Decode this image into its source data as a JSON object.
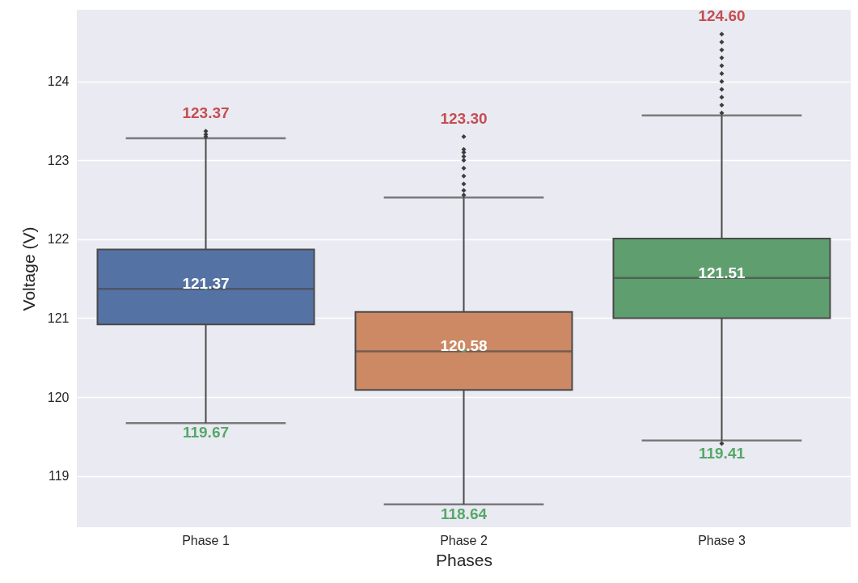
{
  "chart_data": {
    "type": "box",
    "xlabel": "Phases",
    "ylabel": "Voltage (V)",
    "categories": [
      "Phase 1",
      "Phase 2",
      "Phase 3"
    ],
    "colors": [
      "#5572a4",
      "#cc8963",
      "#5f9e6e"
    ],
    "boxes": [
      {
        "low": 119.67,
        "q1": 120.92,
        "median": 121.37,
        "q3": 121.87,
        "high": 123.28,
        "mean": 121.38,
        "outliers": [
          123.3,
          123.33,
          123.37
        ]
      },
      {
        "low": 118.64,
        "q1": 120.09,
        "median": 120.58,
        "q3": 121.08,
        "high": 122.53,
        "mean": 120.58,
        "outliers": [
          122.56,
          122.62,
          122.7,
          122.8,
          122.9,
          123.0,
          123.05,
          123.1,
          123.14,
          123.3
        ]
      },
      {
        "low": 119.45,
        "q1": 121.0,
        "median": 121.51,
        "q3": 122.01,
        "high": 123.57,
        "outliers": [
          119.41,
          123.6,
          123.7,
          123.8,
          123.9,
          124.0,
          124.1,
          124.2,
          124.3,
          124.4,
          124.5,
          124.6
        ]
      }
    ],
    "annotations": [
      "123.37",
      {
        "text": "121.37",
        "x": "Phase 1",
        "y": 121.37
      },
      {
        "text": "119.67",
        "x": "Phase 1",
        "y": 119.67
      },
      "123.30",
      {
        "text": "120.58",
        "x": "Phase 2",
        "y": 120.58
      },
      {
        "text": "118.64",
        "x": "Phase 2",
        "y": 118.64
      },
      "124.60",
      {
        "text": "121.51",
        "x": "Phase 3",
        "y": 121.51
      },
      {
        "text": "119.41",
        "x": "Phase 3",
        "y": 119.41
      }
    ],
    "ylim": [
      118.35,
      124.91
    ],
    "yticks": [
      119,
      120,
      121,
      122,
      123,
      124
    ],
    "grid": "y",
    "marker": "diamond"
  }
}
